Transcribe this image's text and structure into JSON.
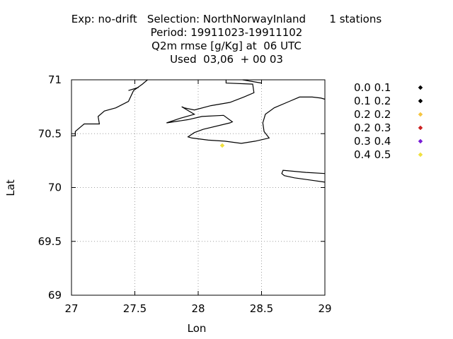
{
  "title_lines": [
    "Exp: no-drift   Selection: NorthNorwayInland       1 stations",
    "Period: 19911023-19911102",
    "Q2m rmse [g/Kg] at  06 UTC",
    "Used  03,06  + 00 03"
  ],
  "chart_data": {
    "type": "scatter",
    "xlabel": "Lon",
    "ylabel": "Lat",
    "xlim": [
      27,
      29
    ],
    "ylim": [
      69,
      71
    ],
    "xticks": [
      27,
      27.5,
      28,
      28.5,
      29
    ],
    "yticks": [
      69,
      69.5,
      70,
      70.5,
      71
    ],
    "xtick_labels": [
      "27",
      "27.5",
      "28",
      "28.5",
      "29"
    ],
    "ytick_labels": [
      "69",
      "69.5",
      "70",
      "70.5",
      "71"
    ],
    "grid": true,
    "legend_placement": "right",
    "legend": [
      {
        "label": "0.0 0.1",
        "color": "#000000"
      },
      {
        "label": "0.1 0.2",
        "color": "#000000"
      },
      {
        "label": "0.2 0.2",
        "color": "#f5c542"
      },
      {
        "label": "0.2 0.3",
        "color": "#cc2222"
      },
      {
        "label": "0.3 0.4",
        "color": "#7a1fd6"
      },
      {
        "label": "0.4 0.5",
        "color": "#f0e040"
      }
    ],
    "points": [
      {
        "x": 28.19,
        "y": 70.39,
        "color": "#f0e040"
      }
    ],
    "coastlines": [
      [
        [
          27.0,
          70.48
        ],
        [
          27.03,
          70.48
        ],
        [
          27.03,
          70.52
        ],
        [
          27.07,
          70.56
        ],
        [
          27.1,
          70.59
        ],
        [
          27.22,
          70.59
        ],
        [
          27.21,
          70.66
        ],
        [
          27.26,
          70.71
        ],
        [
          27.35,
          70.74
        ],
        [
          27.45,
          70.8
        ],
        [
          27.49,
          70.9
        ],
        [
          27.56,
          70.96
        ],
        [
          27.6,
          71.0
        ]
      ],
      [
        [
          27.45,
          70.9
        ],
        [
          27.53,
          70.93
        ]
      ],
      [
        [
          28.22,
          71.0
        ],
        [
          28.22,
          70.97
        ],
        [
          28.43,
          70.96
        ],
        [
          28.44,
          70.88
        ],
        [
          28.36,
          70.84
        ],
        [
          28.25,
          70.79
        ],
        [
          28.1,
          70.76
        ],
        [
          27.97,
          70.72
        ],
        [
          27.89,
          70.74
        ],
        [
          27.87,
          70.75
        ],
        [
          27.97,
          70.68
        ],
        [
          27.85,
          70.64
        ],
        [
          27.75,
          70.6
        ],
        [
          27.92,
          70.63
        ],
        [
          28.03,
          70.66
        ],
        [
          28.2,
          70.67
        ],
        [
          28.27,
          70.61
        ],
        [
          28.25,
          70.6
        ],
        [
          28.04,
          70.54
        ],
        [
          27.97,
          70.51
        ],
        [
          27.92,
          70.47
        ],
        [
          27.95,
          70.46
        ],
        [
          28.08,
          70.44
        ],
        [
          28.21,
          70.43
        ],
        [
          28.34,
          70.41
        ],
        [
          28.45,
          70.43
        ],
        [
          28.56,
          70.46
        ],
        [
          28.52,
          70.52
        ],
        [
          28.51,
          70.6
        ],
        [
          28.53,
          70.68
        ],
        [
          28.6,
          70.74
        ],
        [
          28.72,
          70.8
        ],
        [
          28.8,
          70.84
        ],
        [
          28.9,
          70.84
        ],
        [
          28.97,
          70.83
        ],
        [
          29.0,
          70.82
        ]
      ],
      [
        [
          28.35,
          71.0
        ],
        [
          28.5,
          70.97
        ]
      ],
      [
        [
          29.0,
          70.13
        ],
        [
          28.85,
          70.14
        ],
        [
          28.67,
          70.16
        ],
        [
          28.66,
          70.13
        ],
        [
          28.68,
          70.11
        ],
        [
          28.76,
          70.09
        ],
        [
          28.88,
          70.07
        ],
        [
          29.0,
          70.05
        ]
      ]
    ]
  }
}
